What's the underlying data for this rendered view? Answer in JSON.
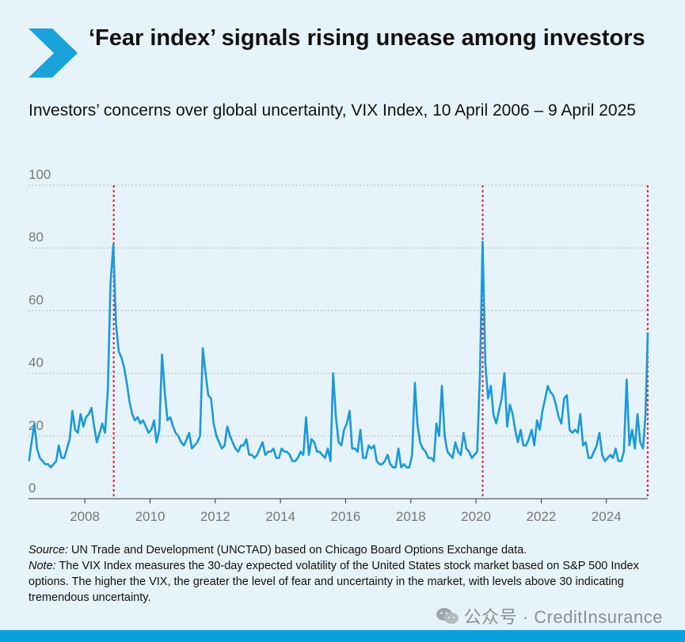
{
  "header": {
    "title": "‘Fear index’ signals rising unease among investors",
    "subtitle": "Investors’ concerns over global uncertainty, VIX Index, 10 April 2006 – 9 April 2025",
    "accent_color": "#1aa3db",
    "icon": "chevron-right-icon"
  },
  "chart_data": {
    "type": "line",
    "title": "Investors’ concerns over global uncertainty, VIX Index, 10 April 2006 – 9 April 2025",
    "xlabel": "",
    "ylabel": "",
    "xlim": [
      "2006-04-10",
      "2025-04-09"
    ],
    "ylim": [
      0,
      100
    ],
    "yticks": [
      "0",
      "20",
      "40",
      "60",
      "80",
      "100"
    ],
    "xticks": [
      "2008",
      "2010",
      "2012",
      "2014",
      "2016",
      "2018",
      "2020",
      "2022",
      "2024"
    ],
    "grid": "horizontal dotted",
    "line_color": "#1a9ad8",
    "marker_color": "#e0223a",
    "markers": [
      {
        "date": "2008-11-20"
      },
      {
        "date": "2020-03-16"
      },
      {
        "date": "2025-04-08"
      }
    ],
    "series": [
      {
        "x": [
          "2006-04",
          "2006-05",
          "2006-06",
          "2006-07",
          "2006-08",
          "2006-09",
          "2006-10",
          "2006-11",
          "2006-12",
          "2007-01",
          "2007-02",
          "2007-03",
          "2007-04",
          "2007-05",
          "2007-06",
          "2007-07",
          "2007-08",
          "2007-09",
          "2007-10",
          "2007-11",
          "2007-12",
          "2008-01",
          "2008-02",
          "2008-03",
          "2008-04",
          "2008-05",
          "2008-06",
          "2008-07",
          "2008-08",
          "2008-09",
          "2008-10",
          "2008-11",
          "2008-12",
          "2009-01",
          "2009-02",
          "2009-03",
          "2009-04",
          "2009-05",
          "2009-06",
          "2009-07",
          "2009-08",
          "2009-09",
          "2009-10",
          "2009-11",
          "2009-12",
          "2010-01",
          "2010-02",
          "2010-03",
          "2010-04",
          "2010-05",
          "2010-06",
          "2010-07",
          "2010-08",
          "2010-09",
          "2010-10",
          "2010-11",
          "2010-12",
          "2011-01",
          "2011-02",
          "2011-03",
          "2011-04",
          "2011-05",
          "2011-06",
          "2011-07",
          "2011-08",
          "2011-09",
          "2011-10",
          "2011-11",
          "2011-12",
          "2012-01",
          "2012-02",
          "2012-03",
          "2012-04",
          "2012-05",
          "2012-06",
          "2012-07",
          "2012-08",
          "2012-09",
          "2012-10",
          "2012-11",
          "2012-12",
          "2013-01",
          "2013-02",
          "2013-03",
          "2013-04",
          "2013-05",
          "2013-06",
          "2013-07",
          "2013-08",
          "2013-09",
          "2013-10",
          "2013-11",
          "2013-12",
          "2014-01",
          "2014-02",
          "2014-03",
          "2014-04",
          "2014-05",
          "2014-06",
          "2014-07",
          "2014-08",
          "2014-09",
          "2014-10",
          "2014-11",
          "2014-12",
          "2015-01",
          "2015-02",
          "2015-03",
          "2015-04",
          "2015-05",
          "2015-06",
          "2015-07",
          "2015-08",
          "2015-09",
          "2015-10",
          "2015-11",
          "2015-12",
          "2016-01",
          "2016-02",
          "2016-03",
          "2016-04",
          "2016-05",
          "2016-06",
          "2016-07",
          "2016-08",
          "2016-09",
          "2016-10",
          "2016-11",
          "2016-12",
          "2017-01",
          "2017-02",
          "2017-03",
          "2017-04",
          "2017-05",
          "2017-06",
          "2017-07",
          "2017-08",
          "2017-09",
          "2017-10",
          "2017-11",
          "2017-12",
          "2018-01",
          "2018-02",
          "2018-03",
          "2018-04",
          "2018-05",
          "2018-06",
          "2018-07",
          "2018-08",
          "2018-09",
          "2018-10",
          "2018-11",
          "2018-12",
          "2019-01",
          "2019-02",
          "2019-03",
          "2019-04",
          "2019-05",
          "2019-06",
          "2019-07",
          "2019-08",
          "2019-09",
          "2019-10",
          "2019-11",
          "2019-12",
          "2020-01",
          "2020-02",
          "2020-03",
          "2020-04",
          "2020-05",
          "2020-06",
          "2020-07",
          "2020-08",
          "2020-09",
          "2020-10",
          "2020-11",
          "2020-12",
          "2021-01",
          "2021-02",
          "2021-03",
          "2021-04",
          "2021-05",
          "2021-06",
          "2021-07",
          "2021-08",
          "2021-09",
          "2021-10",
          "2021-11",
          "2021-12",
          "2022-01",
          "2022-02",
          "2022-03",
          "2022-04",
          "2022-05",
          "2022-06",
          "2022-07",
          "2022-08",
          "2022-09",
          "2022-10",
          "2022-11",
          "2022-12",
          "2023-01",
          "2023-02",
          "2023-03",
          "2023-04",
          "2023-05",
          "2023-06",
          "2023-07",
          "2023-08",
          "2023-09",
          "2023-10",
          "2023-11",
          "2023-12",
          "2024-01",
          "2024-02",
          "2024-03",
          "2024-04",
          "2024-05",
          "2024-06",
          "2024-07",
          "2024-08",
          "2024-09",
          "2024-10",
          "2024-11",
          "2024-12",
          "2025-01",
          "2025-02",
          "2025-03",
          "2025-04"
        ],
        "values": [
          12,
          18,
          24,
          16,
          13,
          12,
          11,
          11,
          10,
          11,
          12,
          17,
          13,
          13,
          16,
          19,
          28,
          22,
          21,
          27,
          23,
          26,
          27,
          29,
          23,
          18,
          21,
          24,
          21,
          35,
          69,
          81,
          56,
          47,
          45,
          42,
          37,
          31,
          27,
          25,
          26,
          24,
          25,
          23,
          21,
          22,
          25,
          18,
          22,
          46,
          34,
          25,
          26,
          23,
          21,
          20,
          18,
          17,
          19,
          21,
          16,
          17,
          18,
          20,
          48,
          40,
          33,
          32,
          24,
          20,
          18,
          16,
          17,
          23,
          20,
          18,
          16,
          15,
          17,
          17,
          19,
          14,
          14,
          13,
          14,
          16,
          18,
          14,
          15,
          15,
          16,
          13,
          13,
          16,
          15,
          15,
          14,
          12,
          12,
          13,
          15,
          14,
          26,
          14,
          19,
          18,
          15,
          15,
          14,
          13,
          16,
          12,
          40,
          26,
          18,
          17,
          22,
          24,
          28,
          16,
          16,
          15,
          22,
          13,
          13,
          17,
          16,
          17,
          12,
          11,
          11,
          12,
          14,
          11,
          10,
          10,
          16,
          10,
          11,
          10,
          10,
          14,
          37,
          24,
          18,
          16,
          15,
          13,
          13,
          12,
          24,
          20,
          36,
          20,
          15,
          14,
          13,
          18,
          15,
          14,
          21,
          16,
          15,
          13,
          14,
          15,
          40,
          82,
          43,
          32,
          36,
          27,
          24,
          28,
          32,
          40,
          23,
          30,
          27,
          22,
          18,
          22,
          17,
          17,
          19,
          22,
          17,
          25,
          22,
          28,
          32,
          36,
          34,
          33,
          30,
          26,
          24,
          32,
          33,
          22,
          21,
          22,
          21,
          27,
          17,
          18,
          13,
          13,
          15,
          17,
          21,
          14,
          12,
          13,
          14,
          13,
          16,
          12,
          12,
          15,
          38,
          17,
          22,
          16,
          27,
          18,
          16,
          27,
          53
        ]
      }
    ]
  },
  "footnotes": {
    "source_label": "Source:",
    "source_text": " UN Trade and Development (UNCTAD) based on Chicago Board Options Exchange data.",
    "note_label": "Note:",
    "note_text": " The VIX Index measures the 30-day expected volatility of the United States stock market based on S&P 500 Index options. The higher the VIX, the greater the level of fear and uncertainty in the market, with levels above 30 indicating tremendous uncertainty."
  },
  "watermark": {
    "text": "公众号 · CreditInsurance",
    "icon": "wechat-icon"
  },
  "bottom_bar_color": "#0aa0dc"
}
